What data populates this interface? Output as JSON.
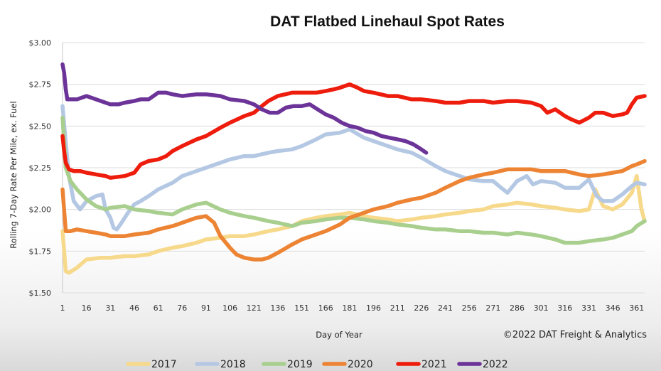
{
  "chart_data": {
    "type": "line",
    "title": "DAT Flatbed Linehaul Spot Rates",
    "xlabel": "Day of Year",
    "ylabel": "Rolling 7-Day Rate Per Mile, ex. Fuel",
    "copyright": "©2022 DAT Freight & Analytics",
    "xlim": [
      1,
      366
    ],
    "ylim": [
      1.5,
      3.0
    ],
    "x_ticks": [
      1,
      16,
      31,
      46,
      61,
      76,
      91,
      106,
      121,
      136,
      151,
      166,
      181,
      196,
      211,
      226,
      241,
      256,
      271,
      286,
      301,
      316,
      331,
      346,
      361
    ],
    "y_ticks": [
      {
        "value": 1.5,
        "label": "$1.50"
      },
      {
        "value": 1.75,
        "label": "$1.75"
      },
      {
        "value": 2.0,
        "label": "$2.00"
      },
      {
        "value": 2.25,
        "label": "$2.25"
      },
      {
        "value": 2.5,
        "label": "$2.50"
      },
      {
        "value": 2.75,
        "label": "$2.75"
      },
      {
        "value": 3.0,
        "label": "$3.00"
      }
    ],
    "grid": true,
    "legend_position": "bottom",
    "series": [
      {
        "name": "2017",
        "color": "#f7d98b",
        "x": [
          1,
          3,
          5,
          10,
          16,
          25,
          31,
          40,
          46,
          55,
          61,
          70,
          76,
          85,
          91,
          100,
          106,
          115,
          121,
          130,
          136,
          145,
          151,
          160,
          166,
          175,
          181,
          190,
          196,
          205,
          211,
          220,
          226,
          235,
          241,
          250,
          256,
          265,
          271,
          280,
          286,
          295,
          301,
          310,
          316,
          325,
          331,
          335,
          340,
          346,
          352,
          358,
          361,
          364,
          366
        ],
        "y": [
          1.87,
          1.63,
          1.62,
          1.65,
          1.7,
          1.71,
          1.71,
          1.72,
          1.72,
          1.73,
          1.75,
          1.77,
          1.78,
          1.8,
          1.82,
          1.83,
          1.84,
          1.84,
          1.85,
          1.87,
          1.88,
          1.9,
          1.93,
          1.95,
          1.96,
          1.97,
          1.98,
          1.96,
          1.95,
          1.94,
          1.93,
          1.94,
          1.95,
          1.96,
          1.97,
          1.98,
          1.99,
          2.0,
          2.02,
          2.03,
          2.04,
          2.03,
          2.02,
          2.01,
          2.0,
          1.99,
          2.0,
          2.12,
          2.02,
          2.0,
          2.03,
          2.1,
          2.2,
          2.0,
          1.93
        ]
      },
      {
        "name": "2018",
        "color": "#b4c8e4",
        "x": [
          1,
          3,
          5,
          8,
          12,
          16,
          22,
          26,
          28,
          31,
          33,
          35,
          38,
          42,
          46,
          50,
          55,
          61,
          70,
          76,
          85,
          91,
          100,
          106,
          115,
          121,
          130,
          136,
          145,
          151,
          160,
          166,
          175,
          181,
          190,
          196,
          205,
          211,
          220,
          226,
          235,
          241,
          250,
          256,
          265,
          271,
          276,
          280,
          286,
          292,
          296,
          301,
          310,
          316,
          325,
          331,
          336,
          340,
          346,
          352,
          358,
          361,
          366
        ],
        "y": [
          2.62,
          2.4,
          2.2,
          2.05,
          2.0,
          2.05,
          2.08,
          2.09,
          2.0,
          1.95,
          1.89,
          1.88,
          1.92,
          1.98,
          2.03,
          2.05,
          2.08,
          2.12,
          2.16,
          2.2,
          2.23,
          2.25,
          2.28,
          2.3,
          2.32,
          2.32,
          2.34,
          2.35,
          2.36,
          2.38,
          2.42,
          2.45,
          2.46,
          2.48,
          2.43,
          2.41,
          2.38,
          2.36,
          2.34,
          2.31,
          2.26,
          2.23,
          2.2,
          2.18,
          2.17,
          2.17,
          2.13,
          2.1,
          2.17,
          2.2,
          2.15,
          2.17,
          2.16,
          2.13,
          2.13,
          2.18,
          2.08,
          2.05,
          2.05,
          2.09,
          2.14,
          2.16,
          2.15
        ]
      },
      {
        "name": "2019",
        "color": "#a8cf8e",
        "x": [
          1,
          3,
          6,
          10,
          16,
          22,
          28,
          31,
          40,
          46,
          55,
          61,
          70,
          76,
          85,
          91,
          100,
          106,
          115,
          121,
          130,
          136,
          145,
          151,
          160,
          166,
          175,
          181,
          190,
          196,
          205,
          211,
          220,
          226,
          235,
          241,
          250,
          256,
          265,
          271,
          280,
          286,
          295,
          301,
          310,
          316,
          325,
          331,
          340,
          346,
          352,
          358,
          361,
          366
        ],
        "y": [
          2.55,
          2.25,
          2.17,
          2.12,
          2.06,
          2.02,
          2.0,
          2.01,
          2.02,
          2.0,
          1.99,
          1.98,
          1.97,
          2.0,
          2.03,
          2.04,
          2.0,
          1.98,
          1.96,
          1.95,
          1.93,
          1.92,
          1.9,
          1.92,
          1.93,
          1.94,
          1.95,
          1.95,
          1.94,
          1.93,
          1.92,
          1.91,
          1.9,
          1.89,
          1.88,
          1.88,
          1.87,
          1.87,
          1.86,
          1.86,
          1.85,
          1.86,
          1.85,
          1.84,
          1.82,
          1.8,
          1.8,
          1.81,
          1.82,
          1.83,
          1.85,
          1.87,
          1.9,
          1.93
        ]
      },
      {
        "name": "2020",
        "color": "#ec8434",
        "x": [
          1,
          3,
          6,
          10,
          16,
          22,
          28,
          31,
          40,
          46,
          55,
          61,
          70,
          76,
          85,
          91,
          96,
          100,
          106,
          110,
          115,
          121,
          126,
          130,
          136,
          145,
          151,
          160,
          166,
          175,
          181,
          190,
          196,
          205,
          211,
          220,
          226,
          235,
          241,
          250,
          256,
          265,
          271,
          280,
          286,
          295,
          301,
          310,
          316,
          325,
          331,
          340,
          346,
          352,
          358,
          361,
          366
        ],
        "y": [
          2.12,
          1.87,
          1.87,
          1.88,
          1.87,
          1.86,
          1.85,
          1.84,
          1.84,
          1.85,
          1.86,
          1.88,
          1.9,
          1.92,
          1.95,
          1.96,
          1.92,
          1.84,
          1.77,
          1.73,
          1.71,
          1.7,
          1.7,
          1.71,
          1.74,
          1.79,
          1.82,
          1.85,
          1.87,
          1.91,
          1.95,
          1.98,
          2.0,
          2.02,
          2.04,
          2.06,
          2.07,
          2.1,
          2.13,
          2.17,
          2.19,
          2.21,
          2.22,
          2.24,
          2.24,
          2.24,
          2.23,
          2.23,
          2.23,
          2.21,
          2.2,
          2.21,
          2.22,
          2.23,
          2.26,
          2.27,
          2.29
        ]
      },
      {
        "name": "2021",
        "color": "#ee1c0c",
        "x": [
          1,
          2,
          3,
          5,
          8,
          12,
          16,
          22,
          28,
          31,
          40,
          46,
          50,
          55,
          61,
          66,
          70,
          76,
          85,
          91,
          100,
          106,
          115,
          121,
          126,
          130,
          136,
          145,
          151,
          160,
          166,
          171,
          175,
          181,
          186,
          190,
          196,
          205,
          211,
          220,
          226,
          235,
          241,
          250,
          256,
          265,
          271,
          280,
          286,
          295,
          301,
          305,
          310,
          316,
          320,
          325,
          331,
          335,
          340,
          346,
          352,
          355,
          358,
          361,
          366
        ],
        "y": [
          2.44,
          2.35,
          2.28,
          2.24,
          2.23,
          2.23,
          2.22,
          2.21,
          2.2,
          2.19,
          2.2,
          2.22,
          2.27,
          2.29,
          2.3,
          2.32,
          2.35,
          2.38,
          2.42,
          2.44,
          2.49,
          2.52,
          2.56,
          2.58,
          2.62,
          2.65,
          2.68,
          2.7,
          2.7,
          2.7,
          2.71,
          2.72,
          2.73,
          2.75,
          2.73,
          2.71,
          2.7,
          2.68,
          2.68,
          2.66,
          2.66,
          2.65,
          2.64,
          2.64,
          2.65,
          2.65,
          2.64,
          2.65,
          2.65,
          2.64,
          2.62,
          2.58,
          2.6,
          2.56,
          2.54,
          2.52,
          2.55,
          2.58,
          2.58,
          2.56,
          2.57,
          2.58,
          2.63,
          2.67,
          2.68
        ]
      },
      {
        "name": "2022",
        "color": "#6c3398",
        "x": [
          1,
          2,
          3,
          4,
          6,
          10,
          16,
          22,
          28,
          31,
          36,
          40,
          46,
          50,
          55,
          61,
          66,
          70,
          76,
          85,
          91,
          100,
          106,
          115,
          121,
          126,
          131,
          136,
          141,
          146,
          151,
          156,
          161,
          166,
          171,
          176,
          181,
          186,
          191,
          196,
          201,
          206,
          211,
          216,
          221,
          226,
          229
        ],
        "y": [
          2.87,
          2.82,
          2.72,
          2.66,
          2.66,
          2.66,
          2.68,
          2.66,
          2.64,
          2.63,
          2.63,
          2.64,
          2.65,
          2.66,
          2.66,
          2.7,
          2.7,
          2.69,
          2.68,
          2.69,
          2.69,
          2.68,
          2.66,
          2.65,
          2.63,
          2.6,
          2.58,
          2.58,
          2.61,
          2.62,
          2.62,
          2.63,
          2.6,
          2.57,
          2.55,
          2.52,
          2.5,
          2.49,
          2.47,
          2.46,
          2.44,
          2.43,
          2.42,
          2.41,
          2.39,
          2.36,
          2.34
        ]
      }
    ]
  }
}
